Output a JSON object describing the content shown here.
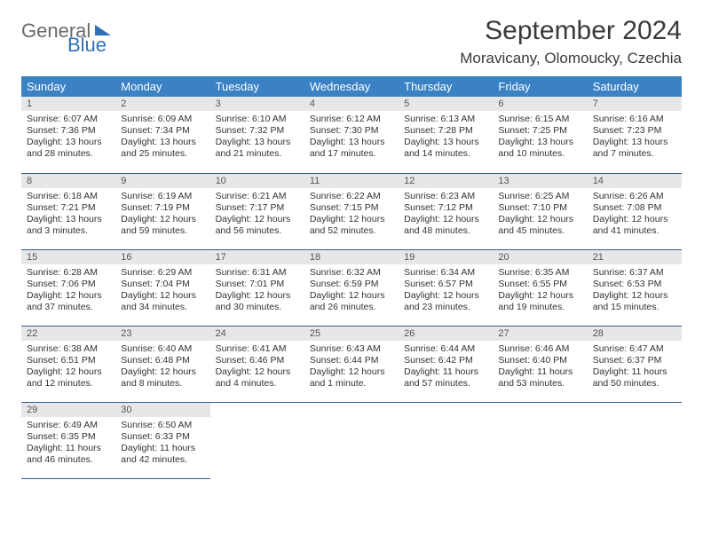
{
  "logo": {
    "word1": "General",
    "word2": "Blue"
  },
  "title": "September 2024",
  "location": "Moravicany, Olomoucky, Czechia",
  "colors": {
    "header_bg": "#3a82c4",
    "header_text": "#ffffff",
    "daynum_bg": "#e7e7e7",
    "cell_border": "#2f5f8f",
    "logo_gray": "#6a6a6a",
    "logo_blue": "#2f71b8"
  },
  "weekdays": [
    "Sunday",
    "Monday",
    "Tuesday",
    "Wednesday",
    "Thursday",
    "Friday",
    "Saturday"
  ],
  "days": [
    {
      "n": 1,
      "sr": "6:07 AM",
      "ss": "7:36 PM",
      "dl": "13 hours and 28 minutes."
    },
    {
      "n": 2,
      "sr": "6:09 AM",
      "ss": "7:34 PM",
      "dl": "13 hours and 25 minutes."
    },
    {
      "n": 3,
      "sr": "6:10 AM",
      "ss": "7:32 PM",
      "dl": "13 hours and 21 minutes."
    },
    {
      "n": 4,
      "sr": "6:12 AM",
      "ss": "7:30 PM",
      "dl": "13 hours and 17 minutes."
    },
    {
      "n": 5,
      "sr": "6:13 AM",
      "ss": "7:28 PM",
      "dl": "13 hours and 14 minutes."
    },
    {
      "n": 6,
      "sr": "6:15 AM",
      "ss": "7:25 PM",
      "dl": "13 hours and 10 minutes."
    },
    {
      "n": 7,
      "sr": "6:16 AM",
      "ss": "7:23 PM",
      "dl": "13 hours and 7 minutes."
    },
    {
      "n": 8,
      "sr": "6:18 AM",
      "ss": "7:21 PM",
      "dl": "13 hours and 3 minutes."
    },
    {
      "n": 9,
      "sr": "6:19 AM",
      "ss": "7:19 PM",
      "dl": "12 hours and 59 minutes."
    },
    {
      "n": 10,
      "sr": "6:21 AM",
      "ss": "7:17 PM",
      "dl": "12 hours and 56 minutes."
    },
    {
      "n": 11,
      "sr": "6:22 AM",
      "ss": "7:15 PM",
      "dl": "12 hours and 52 minutes."
    },
    {
      "n": 12,
      "sr": "6:23 AM",
      "ss": "7:12 PM",
      "dl": "12 hours and 48 minutes."
    },
    {
      "n": 13,
      "sr": "6:25 AM",
      "ss": "7:10 PM",
      "dl": "12 hours and 45 minutes."
    },
    {
      "n": 14,
      "sr": "6:26 AM",
      "ss": "7:08 PM",
      "dl": "12 hours and 41 minutes."
    },
    {
      "n": 15,
      "sr": "6:28 AM",
      "ss": "7:06 PM",
      "dl": "12 hours and 37 minutes."
    },
    {
      "n": 16,
      "sr": "6:29 AM",
      "ss": "7:04 PM",
      "dl": "12 hours and 34 minutes."
    },
    {
      "n": 17,
      "sr": "6:31 AM",
      "ss": "7:01 PM",
      "dl": "12 hours and 30 minutes."
    },
    {
      "n": 18,
      "sr": "6:32 AM",
      "ss": "6:59 PM",
      "dl": "12 hours and 26 minutes."
    },
    {
      "n": 19,
      "sr": "6:34 AM",
      "ss": "6:57 PM",
      "dl": "12 hours and 23 minutes."
    },
    {
      "n": 20,
      "sr": "6:35 AM",
      "ss": "6:55 PM",
      "dl": "12 hours and 19 minutes."
    },
    {
      "n": 21,
      "sr": "6:37 AM",
      "ss": "6:53 PM",
      "dl": "12 hours and 15 minutes."
    },
    {
      "n": 22,
      "sr": "6:38 AM",
      "ss": "6:51 PM",
      "dl": "12 hours and 12 minutes."
    },
    {
      "n": 23,
      "sr": "6:40 AM",
      "ss": "6:48 PM",
      "dl": "12 hours and 8 minutes."
    },
    {
      "n": 24,
      "sr": "6:41 AM",
      "ss": "6:46 PM",
      "dl": "12 hours and 4 minutes."
    },
    {
      "n": 25,
      "sr": "6:43 AM",
      "ss": "6:44 PM",
      "dl": "12 hours and 1 minute."
    },
    {
      "n": 26,
      "sr": "6:44 AM",
      "ss": "6:42 PM",
      "dl": "11 hours and 57 minutes."
    },
    {
      "n": 27,
      "sr": "6:46 AM",
      "ss": "6:40 PM",
      "dl": "11 hours and 53 minutes."
    },
    {
      "n": 28,
      "sr": "6:47 AM",
      "ss": "6:37 PM",
      "dl": "11 hours and 50 minutes."
    },
    {
      "n": 29,
      "sr": "6:49 AM",
      "ss": "6:35 PM",
      "dl": "11 hours and 46 minutes."
    },
    {
      "n": 30,
      "sr": "6:50 AM",
      "ss": "6:33 PM",
      "dl": "11 hours and 42 minutes."
    }
  ],
  "labels": {
    "sunrise": "Sunrise:",
    "sunset": "Sunset:",
    "daylight": "Daylight:"
  }
}
